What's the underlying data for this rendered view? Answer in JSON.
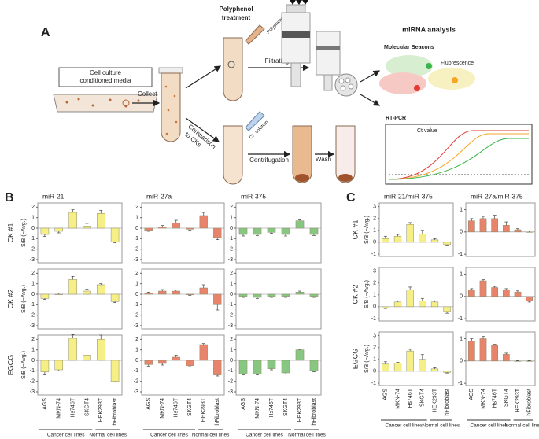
{
  "figure": {
    "panel_a": {
      "label": "A",
      "media_label": [
        "Cell culture",
        "conditioned media"
      ],
      "collect": "Collect",
      "treatment": [
        "Polyphenol",
        "treatment"
      ],
      "polyphenol": "Polyphenol",
      "filtrating": "Filtrating",
      "comparison": [
        "Comparison",
        "to CKs"
      ],
      "ck_solution": "CK solution",
      "centrifugation": "Centrifugation",
      "wash": "Wash",
      "analysis": "miRNA analysis",
      "beacons": "Molecular Beacons",
      "fluorescence": "Fluorescence",
      "rtpcr": "RT-PCR",
      "ct": "Ct value"
    },
    "panel_b_label": "B",
    "panel_c_label": "C"
  },
  "chart_data": [
    {
      "type": "bar",
      "title": "miR-21",
      "row_label": "CK #1",
      "ylabel": "S/B (−Avg.)",
      "values": [
        -0.6,
        -0.3,
        1.5,
        0.2,
        1.4,
        -1.3
      ],
      "errors": [
        0.2,
        0.15,
        0.25,
        0.25,
        0.3,
        0.1
      ],
      "color": "#f6ef86",
      "ylim": [
        -3.3,
        2.4
      ],
      "yticks": [
        -3,
        -2,
        -1,
        0,
        1,
        2
      ]
    },
    {
      "type": "bar",
      "title": "miR-27a",
      "values": [
        -0.2,
        0.1,
        0.5,
        -0.1,
        1.2,
        -0.9
      ],
      "errors": [
        0.1,
        0.15,
        0.25,
        0.1,
        0.3,
        0.2
      ],
      "color": "#e8836c",
      "ylim": [
        -3.3,
        2.4
      ],
      "yticks": [
        -3,
        -2,
        -1,
        0,
        1,
        2
      ]
    },
    {
      "type": "bar",
      "title": "miR-375",
      "values": [
        -0.6,
        -0.6,
        -0.4,
        -0.6,
        0.7,
        -0.6
      ],
      "errors": [
        0.15,
        0.1,
        0.1,
        0.15,
        0.1,
        0.1
      ],
      "color": "#88c781",
      "ylim": [
        -3.3,
        2.4
      ],
      "yticks": [
        -3,
        -2,
        -1,
        0,
        1,
        2
      ]
    },
    {
      "type": "bar",
      "row_label": "CK #2",
      "ylabel": "S/B (−Avg.)",
      "values": [
        -0.4,
        0.0,
        1.4,
        0.3,
        0.9,
        -0.7
      ],
      "errors": [
        0.1,
        0.1,
        0.3,
        0.2,
        0.1,
        0.1
      ],
      "color": "#f6ef86",
      "ylim": [
        -3.3,
        2.4
      ],
      "yticks": [
        -3,
        -2,
        -1,
        0,
        1,
        2
      ]
    },
    {
      "type": "bar",
      "values": [
        0.1,
        0.3,
        0.3,
        -0.05,
        0.6,
        -1.0
      ],
      "errors": [
        0.1,
        0.15,
        0.1,
        0.05,
        0.3,
        0.5
      ],
      "color": "#e8836c",
      "ylim": [
        -3.3,
        2.4
      ],
      "yticks": [
        -3,
        -2,
        -1,
        0,
        1,
        2
      ]
    },
    {
      "type": "bar",
      "values": [
        -0.2,
        -0.3,
        -0.2,
        -0.2,
        0.2,
        -0.2
      ],
      "errors": [
        0.1,
        0.1,
        0.1,
        0.1,
        0.1,
        0.1
      ],
      "color": "#88c781",
      "ylim": [
        -3.3,
        2.4
      ],
      "yticks": [
        -3,
        -2,
        -1,
        0,
        1,
        2
      ]
    },
    {
      "type": "bar",
      "row_label": "EGCG",
      "ylabel": "S/B (−Avg.)",
      "values": [
        -1.1,
        -0.9,
        2.1,
        0.5,
        2.0,
        -2.0
      ],
      "errors": [
        0.3,
        0.1,
        0.35,
        0.6,
        0.4,
        0.05
      ],
      "color": "#f6ef86",
      "ylim": [
        -3.3,
        2.4
      ],
      "yticks": [
        -3,
        -2,
        -1,
        0,
        1,
        2
      ],
      "categories": [
        "AGS",
        "MKN-74",
        "Hs746T",
        "SKGT4",
        "HEK293T",
        "hFibroblast"
      ],
      "groups": [
        "Cancer cell lines",
        "Normal cell lines"
      ]
    },
    {
      "type": "bar",
      "values": [
        -0.4,
        -0.3,
        0.3,
        -0.5,
        1.5,
        -1.4
      ],
      "errors": [
        0.15,
        0.15,
        0.2,
        0.1,
        0.1,
        0.1
      ],
      "color": "#e8836c",
      "ylim": [
        -3.3,
        2.4
      ],
      "yticks": [
        -3,
        -2,
        -1,
        0,
        1,
        2
      ],
      "categories": [
        "AGS",
        "MKN-74",
        "Hs746T",
        "SKGT4",
        "HEK293T",
        "hFibroblast"
      ],
      "groups": [
        "Cancer cell lines",
        "Normal cell lines"
      ]
    },
    {
      "type": "bar",
      "values": [
        -1.3,
        -1.3,
        -0.8,
        -1.2,
        1.0,
        -1.0
      ],
      "errors": [
        0.1,
        0.1,
        0.1,
        0.1,
        0.05,
        0.1
      ],
      "color": "#88c781",
      "ylim": [
        -3.3,
        2.4
      ],
      "yticks": [
        -3,
        -2,
        -1,
        0,
        1,
        2
      ],
      "categories": [
        "AGS",
        "MKN-74",
        "Hs746T",
        "SKGT4",
        "HEK293T",
        "hFibroblast"
      ],
      "groups": [
        "Cancer cell lines",
        "Normal cell lines"
      ]
    },
    {
      "type": "bar",
      "title": "miR-21/miR-375",
      "row_label": "CK #1",
      "ylabel": "S/B (−Avg.)",
      "values": [
        0.3,
        0.5,
        1.5,
        0.7,
        0.2,
        -0.2
      ],
      "errors": [
        0.2,
        0.15,
        0.15,
        0.3,
        0.1,
        0.1
      ],
      "color": "#f6ef86",
      "ylim": [
        -1.2,
        3.3
      ],
      "yticks": [
        -1,
        0,
        1,
        2,
        3
      ]
    },
    {
      "type": "bar",
      "title": "miR-27a/miR-375",
      "values": [
        0.5,
        0.6,
        0.6,
        0.3,
        0.1,
        0.0
      ],
      "errors": [
        0.1,
        0.1,
        0.15,
        0.15,
        0.05,
        0.05
      ],
      "color": "#e8836c",
      "ylim": [
        -1.1,
        1.3
      ],
      "yticks": [
        -1,
        0,
        1
      ]
    },
    {
      "type": "bar",
      "row_label": "CK #2",
      "ylabel": "S/B (−Avg.)",
      "values": [
        -0.1,
        0.4,
        1.4,
        0.5,
        0.4,
        -0.4
      ],
      "errors": [
        0.05,
        0.1,
        0.25,
        0.2,
        0.1,
        0.15
      ],
      "color": "#f6ef86",
      "ylim": [
        -1.2,
        3.3
      ],
      "yticks": [
        -1,
        0,
        1,
        2,
        3
      ]
    },
    {
      "type": "bar",
      "values": [
        0.3,
        0.7,
        0.4,
        0.3,
        0.2,
        -0.2
      ],
      "errors": [
        0.05,
        0.05,
        0.05,
        0.05,
        0.05,
        0.05
      ],
      "color": "#e8836c",
      "ylim": [
        -1.1,
        1.3
      ],
      "yticks": [
        -1,
        0,
        1
      ]
    },
    {
      "type": "bar",
      "row_label": "EGCG",
      "ylabel": "S/B (−Avg.)",
      "values": [
        0.6,
        0.7,
        1.7,
        1.0,
        0.2,
        -0.1
      ],
      "errors": [
        0.2,
        0.05,
        0.15,
        0.4,
        0.1,
        0.05
      ],
      "color": "#f6ef86",
      "ylim": [
        -1.2,
        3.3
      ],
      "yticks": [
        -1,
        0,
        1,
        2,
        3
      ],
      "categories": [
        "AGS",
        "MKN-74",
        "Hs746T",
        "SKGT4",
        "HEK293T",
        "hFibroblast"
      ],
      "groups": [
        "Cancer cell lines",
        "Normal cell lines"
      ]
    },
    {
      "type": "bar",
      "values": [
        0.9,
        1.0,
        0.7,
        0.3,
        0.0,
        0.0
      ],
      "errors": [
        0.1,
        0.1,
        0.05,
        0.05,
        0.02,
        0.02
      ],
      "color": "#e8836c",
      "ylim": [
        -1.1,
        1.3
      ],
      "yticks": [
        -1,
        0,
        1
      ],
      "categories": [
        "AGS",
        "MKN-74",
        "Hs746T",
        "SKGT4",
        "HEK293T",
        "hFibroblast"
      ],
      "groups": [
        "Cancer cell lines",
        "Normal cell lines"
      ]
    }
  ]
}
